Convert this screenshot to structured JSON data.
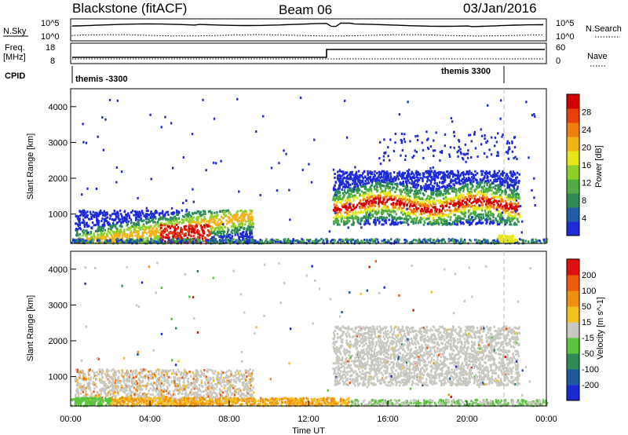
{
  "header": {
    "station": "Blackstone (fitACF)",
    "beam": "Beam 06",
    "date": "03/Jan/2016"
  },
  "summary_labels": {
    "nsky": "N.Sky",
    "nsearch": "N.Search",
    "freq": "Freq.",
    "freq_unit": "[MHz]",
    "nave": "Nave",
    "cpid": "CPID",
    "nsky_top": "10^5",
    "nsky_bottom": "10^0",
    "nsearch_top": "10^5",
    "nsearch_bottom": "10^0",
    "freq_top": "18",
    "freq_bottom": "8",
    "nave_top": "60",
    "nave_bottom": "0",
    "cpid_left": "themis -3300",
    "cpid_right": "themis 3300"
  },
  "chart_data": [
    {
      "type": "heatmap",
      "panel": "power",
      "ylabel": "Slant Range [km]",
      "yticks": [
        1000,
        2000,
        3000,
        4000
      ],
      "ylim": [
        180,
        4500
      ],
      "xlim": [
        0,
        24
      ],
      "colorbar_label": "Power [dB]",
      "colorbar_ticks": [
        "28",
        "24",
        "20",
        "16",
        "12",
        "8",
        "4"
      ],
      "colorbar_colors": [
        "#1f2bd6",
        "#1e5fa8",
        "#2e8b57",
        "#4fae3f",
        "#8fcf2a",
        "#e6e61a",
        "#f2b218",
        "#f07d10",
        "#e8400c",
        "#d40000"
      ]
    },
    {
      "type": "heatmap",
      "panel": "velocity",
      "ylabel": "Slant Range [km]",
      "yticks": [
        1000,
        2000,
        3000,
        4000
      ],
      "ylim": [
        180,
        4500
      ],
      "xlim": [
        0,
        24
      ],
      "xlabel": "Time UT",
      "xticks": [
        "00:00",
        "04:00",
        "08:00",
        "12:00",
        "16:00",
        "20:00",
        "00:00"
      ],
      "colorbar_label": "Velocity [m s^-1]",
      "colorbar_ticks": [
        "200",
        "100",
        "50",
        "15",
        "-15",
        "-50",
        "-100",
        "-200"
      ],
      "colorbar_colors": [
        "#1a2ad0",
        "#1c5aa0",
        "#2e8b57",
        "#5cc43c",
        "#c8c8c0",
        "#f2c020",
        "#f09010",
        "#ec5a0a",
        "#e01010"
      ]
    }
  ],
  "colors": {
    "gray_scatter": "#c8c8c0",
    "power_high": "#e00000",
    "power_mid": "#f2b218",
    "power_low": "#1f2bd6"
  }
}
